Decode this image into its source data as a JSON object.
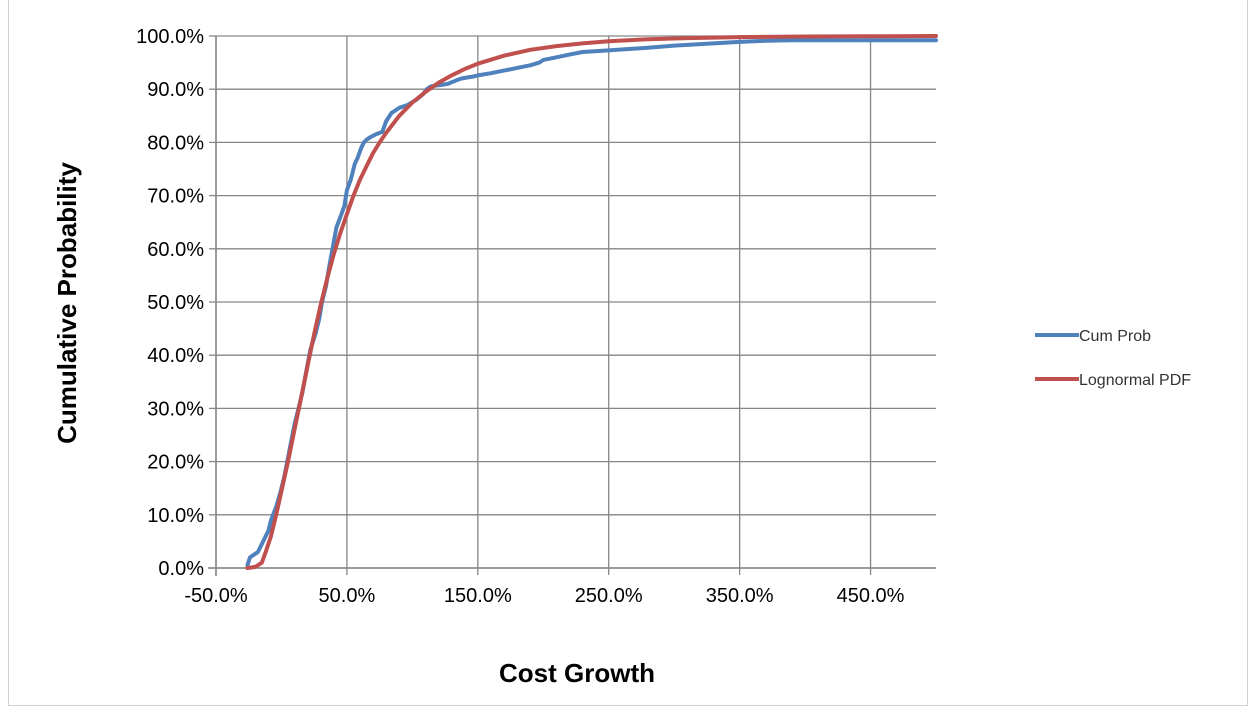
{
  "chart_data": {
    "type": "line",
    "title": "",
    "xlabel": "Cost Growth",
    "ylabel": "Cumulative Probability",
    "xlim": [
      -50,
      500
    ],
    "ylim": [
      0,
      100
    ],
    "x_ticks": [
      "-50.0%",
      "50.0%",
      "150.0%",
      "250.0%",
      "350.0%",
      "450.0%"
    ],
    "x_tick_values": [
      -50,
      50,
      150,
      250,
      350,
      450
    ],
    "y_ticks": [
      "0.0%",
      "10.0%",
      "20.0%",
      "30.0%",
      "40.0%",
      "50.0%",
      "60.0%",
      "70.0%",
      "80.0%",
      "90.0%",
      "100.0%"
    ],
    "y_tick_values": [
      0,
      10,
      20,
      30,
      40,
      50,
      60,
      70,
      80,
      90,
      100
    ],
    "grid": true,
    "legend_position": "right",
    "series": [
      {
        "name": "Cum Prob",
        "color": "#4f81bd",
        "x": [
          -26,
          -24,
          -18,
          -15,
          -12,
          -10,
          -8,
          -4,
          -1,
          2,
          6,
          10,
          13,
          16,
          19,
          22,
          26,
          29,
          31,
          34,
          36,
          39,
          42,
          45,
          48,
          50,
          53,
          56,
          58,
          61,
          63,
          65,
          68,
          72,
          77,
          80,
          84,
          87,
          90,
          96,
          103,
          108,
          111,
          114,
          118,
          122,
          127,
          132,
          137,
          142,
          147,
          150,
          160,
          170,
          180,
          190,
          197,
          200,
          210,
          220,
          230,
          250,
          280,
          300,
          330,
          350,
          370,
          390,
          410,
          430,
          450,
          500
        ],
        "y": [
          0.5,
          2,
          3,
          4.5,
          6,
          7,
          9,
          11.5,
          14,
          17,
          22,
          27,
          30,
          33,
          37,
          41,
          44,
          47,
          50,
          53,
          56,
          60,
          64,
          66,
          68,
          71,
          73,
          76,
          77,
          79,
          80,
          80.5,
          81,
          81.5,
          82,
          84,
          85.5,
          86,
          86.5,
          87,
          88,
          89,
          90,
          90.5,
          90.7,
          90.8,
          91,
          91.5,
          92,
          92.2,
          92.4,
          92.6,
          93,
          93.5,
          94,
          94.5,
          95,
          95.5,
          96,
          96.5,
          97,
          97.3,
          97.8,
          98.2,
          98.6,
          98.9,
          99.1,
          99.2,
          99.2,
          99.2,
          99.2,
          99.2
        ]
      },
      {
        "name": "Lognormal PDF",
        "color": "#c0504d",
        "x": [
          -26,
          -20,
          -15,
          -12,
          -8,
          -4,
          0,
          5,
          10,
          15,
          20,
          25,
          30,
          35,
          40,
          45,
          50,
          55,
          60,
          65,
          70,
          75,
          80,
          90,
          100,
          110,
          120,
          130,
          140,
          150,
          170,
          190,
          210,
          230,
          250,
          280,
          310,
          350,
          400,
          450,
          500
        ],
        "y": [
          0,
          0.2,
          1,
          3,
          6,
          10,
          14.5,
          20,
          26,
          32,
          38,
          44,
          49.5,
          54.5,
          59,
          63,
          66.5,
          70,
          73,
          75.5,
          78,
          80,
          81.8,
          85,
          87.5,
          89.5,
          91.2,
          92.6,
          93.8,
          94.8,
          96.3,
          97.4,
          98.1,
          98.6,
          99,
          99.4,
          99.6,
          99.8,
          99.9,
          99.95,
          100
        ]
      }
    ]
  }
}
